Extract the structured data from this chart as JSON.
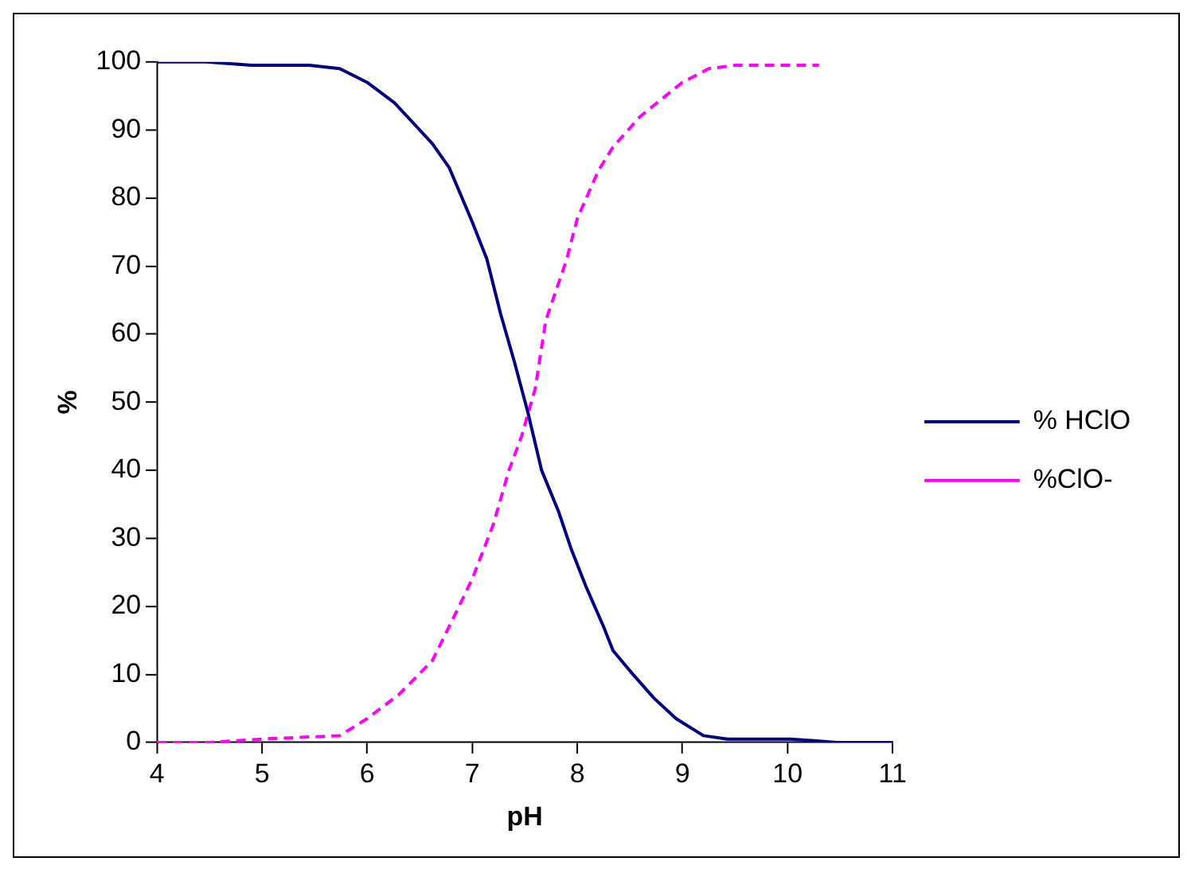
{
  "chart_data": {
    "type": "line",
    "xlabel": "pH",
    "ylabel": "%",
    "xlim": [
      4,
      11
    ],
    "xticks": [
      4,
      5,
      6,
      7,
      8,
      9,
      10,
      11
    ],
    "ylim": [
      0,
      100
    ],
    "yticks": [
      0,
      10,
      20,
      30,
      40,
      50,
      60,
      70,
      80,
      90,
      100
    ],
    "grid": false,
    "legend": "right",
    "marker": "none",
    "series": [
      {
        "name": "% HClO",
        "color": "#000080",
        "line_style": "solid",
        "x": [
          4,
          4.47,
          4.9,
          5.45,
          5.74,
          6.0,
          6.26,
          6.62,
          6.78,
          7.0,
          7.14,
          7.27,
          7.4,
          7.53,
          7.66,
          7.82,
          7.94,
          8.08,
          8.25,
          8.34,
          8.53,
          8.73,
          8.94,
          9.2,
          9.43,
          10.03,
          10.47,
          11
        ],
        "values": [
          100,
          100,
          99.5,
          99.5,
          99,
          97,
          94,
          88,
          84.5,
          76.5,
          71,
          63,
          56,
          48.5,
          40,
          34,
          28.5,
          23,
          17,
          13.5,
          10,
          6.5,
          3.5,
          1,
          0.5,
          0.5,
          0,
          0
        ]
      },
      {
        "name": "%ClO-",
        "color": "#ff00ff",
        "line_style": "dashed",
        "x": [
          4,
          4.5,
          5,
          5.74,
          6,
          6.3,
          6.62,
          6.78,
          7,
          7.2,
          7.35,
          7.47,
          7.6,
          7.7,
          7.9,
          8,
          8.2,
          8.34,
          8.6,
          9,
          9.25,
          9.5,
          10.3
        ],
        "values": [
          0,
          0,
          0.5,
          1,
          3.5,
          7,
          12,
          17,
          24,
          32,
          40,
          45,
          52,
          62,
          71,
          77,
          84,
          87.5,
          92,
          97,
          99,
          99.5,
          99.5
        ]
      }
    ]
  }
}
